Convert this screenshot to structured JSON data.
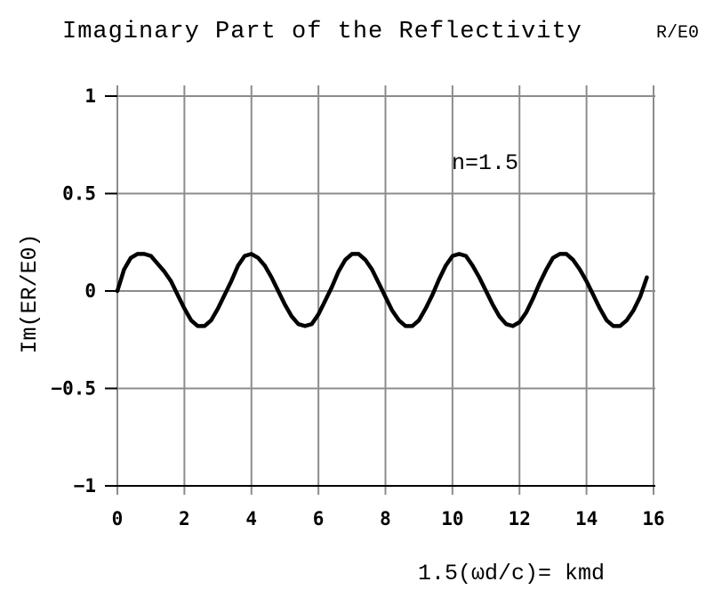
{
  "chart_data": {
    "type": "line",
    "title": "Imaginary Part of the Reflectivity",
    "title_suffix": "R/E0",
    "ylabel": "Im(ER/E0)",
    "xlabel": "1.5(ωd/c)= kmd",
    "annotation": "n=1.5",
    "xlim": [
      0,
      16
    ],
    "ylim": [
      -1,
      1
    ],
    "x_ticks": [
      0,
      2,
      4,
      6,
      8,
      10,
      12,
      14,
      16
    ],
    "x_tick_labels": [
      "0",
      "2",
      "4",
      "6",
      "8",
      "10",
      "12",
      "14",
      "16"
    ],
    "y_ticks": [
      1,
      0.5,
      0,
      -0.5,
      -1
    ],
    "y_tick_labels": [
      "1",
      "0.5",
      "0",
      "−0.5",
      "−1"
    ],
    "grid": true,
    "series": [
      {
        "x": [
          0,
          0.2,
          0.4,
          0.6,
          0.8,
          1.0,
          1.2,
          1.4,
          1.6,
          1.8,
          2.0,
          2.2,
          2.4,
          2.6,
          2.8,
          3.0,
          3.2,
          3.4,
          3.6,
          3.8,
          4.0,
          4.2,
          4.4,
          4.6,
          4.8,
          5.0,
          5.2,
          5.4,
          5.6,
          5.8,
          6.0,
          6.2,
          6.4,
          6.6,
          6.8,
          7.0,
          7.2,
          7.4,
          7.6,
          7.8,
          8.0,
          8.2,
          8.4,
          8.6,
          8.8,
          9.0,
          9.2,
          9.4,
          9.6,
          9.8,
          10.0,
          10.2,
          10.4,
          10.6,
          10.8,
          11.0,
          11.2,
          11.4,
          11.6,
          11.8,
          12.0,
          12.2,
          12.4,
          12.6,
          12.8,
          13.0,
          13.2,
          13.4,
          13.6,
          13.8,
          14.0,
          14.2,
          14.4,
          14.6,
          14.8,
          15.0,
          15.2,
          15.4,
          15.6,
          15.8
        ],
        "y": [
          0.0,
          0.11,
          0.17,
          0.19,
          0.19,
          0.18,
          0.14,
          0.1,
          0.05,
          -0.02,
          -0.09,
          -0.15,
          -0.18,
          -0.18,
          -0.15,
          -0.09,
          -0.02,
          0.05,
          0.13,
          0.18,
          0.19,
          0.17,
          0.13,
          0.07,
          0.0,
          -0.07,
          -0.13,
          -0.17,
          -0.18,
          -0.17,
          -0.12,
          -0.05,
          0.02,
          0.1,
          0.16,
          0.19,
          0.19,
          0.16,
          0.11,
          0.04,
          -0.03,
          -0.1,
          -0.15,
          -0.18,
          -0.18,
          -0.15,
          -0.09,
          -0.02,
          0.06,
          0.13,
          0.18,
          0.19,
          0.18,
          0.13,
          0.07,
          0.0,
          -0.07,
          -0.13,
          -0.17,
          -0.18,
          -0.16,
          -0.11,
          -0.04,
          0.04,
          0.11,
          0.17,
          0.19,
          0.19,
          0.16,
          0.11,
          0.05,
          -0.02,
          -0.09,
          -0.15,
          -0.18,
          -0.18,
          -0.15,
          -0.1,
          -0.03,
          0.07
        ]
      }
    ]
  }
}
